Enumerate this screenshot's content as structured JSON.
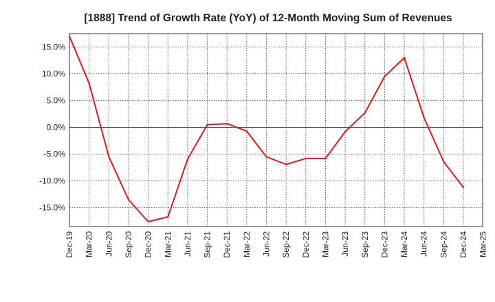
{
  "chart_data": {
    "type": "line",
    "title": "[1888]  Trend of Growth Rate (YoY) of 12-Month Moving Sum of Revenues",
    "xlabel": "",
    "ylabel": "",
    "x_ticks": [
      "Dec-19",
      "Mar-20",
      "Jun-20",
      "Sep-20",
      "Dec-20",
      "Mar-21",
      "Jun-21",
      "Sep-21",
      "Dec-21",
      "Mar-22",
      "Jun-22",
      "Sep-22",
      "Dec-22",
      "Mar-23",
      "Jun-23",
      "Sep-23",
      "Dec-23",
      "Mar-24",
      "Jun-24",
      "Sep-24",
      "Dec-24",
      "Mar-25"
    ],
    "y_ticks": [
      "15.0%",
      "10.0%",
      "5.0%",
      "0.0%",
      "-5.0%",
      "-10.0%",
      "-15.0%"
    ],
    "y_tick_values": [
      15,
      10,
      5,
      0,
      -5,
      -10,
      -15
    ],
    "ylim": [
      -18.5,
      17.5
    ],
    "grid": true,
    "series": [
      {
        "color": "#e8141a",
        "x": [
          "Dec-19",
          "Mar-20",
          "Jun-20",
          "Sep-20",
          "Dec-20",
          "Mar-21",
          "Jun-21",
          "Sep-21",
          "Dec-21",
          "Mar-22",
          "Jun-22",
          "Sep-22",
          "Dec-22",
          "Mar-23",
          "Jun-23",
          "Sep-23",
          "Dec-23",
          "Mar-24",
          "Jun-24",
          "Sep-24",
          "Dec-24"
        ],
        "values": [
          17.0,
          8.2,
          -5.5,
          -13.5,
          -17.6,
          -16.7,
          -5.9,
          0.5,
          0.7,
          -0.7,
          -5.5,
          -6.9,
          -5.8,
          -5.8,
          -0.8,
          2.7,
          9.5,
          13.0,
          1.8,
          -6.4,
          -11.2
        ]
      }
    ]
  }
}
